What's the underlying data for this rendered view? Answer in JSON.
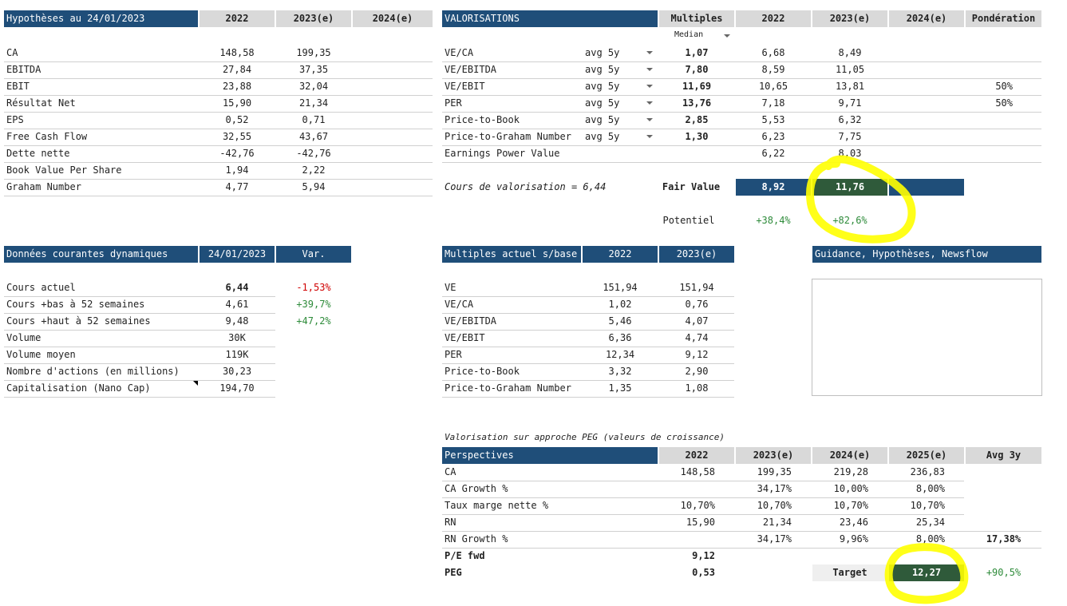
{
  "hyp": {
    "title": "Hypothèses au 24/01/2023",
    "cols": [
      "2022",
      "2023(e)",
      "2024(e)"
    ],
    "rows": [
      {
        "label": "CA",
        "v1": "148,58",
        "v2": "199,35"
      },
      {
        "label": "EBITDA",
        "v1": "27,84",
        "v2": "37,35"
      },
      {
        "label": "EBIT",
        "v1": "23,88",
        "v2": "32,04"
      },
      {
        "label": "Résultat Net",
        "v1": "15,90",
        "v2": "21,34"
      },
      {
        "label": "EPS",
        "v1": "0,52",
        "v2": "0,71"
      },
      {
        "label": "Free Cash Flow",
        "v1": "32,55",
        "v2": "43,67"
      },
      {
        "label": "Dette nette",
        "v1": "-42,76",
        "v2": "-42,76"
      },
      {
        "label": "Book Value Per Share",
        "v1": "1,94",
        "v2": "2,22"
      },
      {
        "label": "Graham Number",
        "v1": "4,77",
        "v2": "5,94"
      }
    ]
  },
  "val": {
    "title": "VALORISATIONS",
    "cols": [
      "Multiples",
      "2022",
      "2023(e)",
      "2024(e)",
      "Pondération"
    ],
    "median_label": "Median",
    "rows": [
      {
        "label": "VE/CA",
        "avg": "avg 5y",
        "mult": "1,07",
        "v1": "6,68",
        "v2": "8,49",
        "pond": ""
      },
      {
        "label": "VE/EBITDA",
        "avg": "avg 5y",
        "mult": "7,80",
        "v1": "8,59",
        "v2": "11,05",
        "pond": ""
      },
      {
        "label": "VE/EBIT",
        "avg": "avg 5y",
        "mult": "11,69",
        "v1": "10,65",
        "v2": "13,81",
        "pond": "50%"
      },
      {
        "label": "PER",
        "avg": "avg 5y",
        "mult": "13,76",
        "v1": "7,18",
        "v2": "9,71",
        "pond": "50%"
      },
      {
        "label": "Price-to-Book",
        "avg": "avg 5y",
        "mult": "2,85",
        "v1": "5,53",
        "v2": "6,32",
        "pond": ""
      },
      {
        "label": "Price-to-Graham Number",
        "avg": "avg 5y",
        "mult": "1,30",
        "v1": "6,23",
        "v2": "7,75",
        "pond": ""
      },
      {
        "label": "Earnings Power Value",
        "avg": "",
        "mult": "",
        "v1": "6,22",
        "v2": "8,03",
        "pond": ""
      }
    ],
    "cours_text": "Cours de valorisation = 6,44",
    "fair_label": "Fair Value",
    "fair_2022": "8,92",
    "fair_2023": "11,76",
    "pot_label": "Potentiel",
    "pot_2022": "+38,4%",
    "pot_2023": "+82,6%"
  },
  "dyn": {
    "title": "Données courantes dynamiques",
    "date": "24/01/2023",
    "var": "Var.",
    "rows": [
      {
        "label": "Cours actuel",
        "val": "6,44",
        "var": "-1,53%"
      },
      {
        "label": "Cours +bas à 52 semaines",
        "val": "4,61",
        "var": "+39,7%"
      },
      {
        "label": "Cours +haut à 52 semaines",
        "val": "9,48",
        "var": "+47,2%"
      },
      {
        "label": "Volume",
        "val": "30K",
        "var": ""
      },
      {
        "label": "Volume moyen",
        "val": "119K",
        "var": ""
      },
      {
        "label": "Nombre d'actions (en millions)",
        "val": "30,23",
        "var": ""
      },
      {
        "label": "Capitalisation (Nano Cap)",
        "val": "194,70",
        "var": ""
      }
    ]
  },
  "mult": {
    "title": "Multiples actuel s/base",
    "cols": [
      "2022",
      "2023(e)"
    ],
    "rows": [
      {
        "label": "VE",
        "v1": "151,94",
        "v2": "151,94"
      },
      {
        "label": "VE/CA",
        "v1": "1,02",
        "v2": "0,76"
      },
      {
        "label": "VE/EBITDA",
        "v1": "5,46",
        "v2": "4,07"
      },
      {
        "label": "VE/EBIT",
        "v1": "6,36",
        "v2": "4,74"
      },
      {
        "label": "PER",
        "v1": "12,34",
        "v2": "9,12"
      },
      {
        "label": "Price-to-Book",
        "v1": "3,32",
        "v2": "2,90"
      },
      {
        "label": "Price-to-Graham Number",
        "v1": "1,35",
        "v2": "1,08"
      }
    ]
  },
  "guid": {
    "title": "Guidance, Hypothèses, Newsflow"
  },
  "peg": {
    "caption": "Valorisation sur approche PEG (valeurs de croissance)",
    "title": "Perspectives",
    "cols": [
      "2022",
      "2023(e)",
      "2024(e)",
      "2025(e)",
      "Avg 3y"
    ],
    "rows": [
      {
        "label": "CA",
        "v": [
          "148,58",
          "199,35",
          "219,28",
          "236,83",
          ""
        ]
      },
      {
        "label": "CA Growth %",
        "v": [
          "",
          "34,17%",
          "10,00%",
          "8,00%",
          ""
        ]
      },
      {
        "label": "Taux marge nette %",
        "v": [
          "10,70%",
          "10,70%",
          "10,70%",
          "10,70%",
          ""
        ]
      },
      {
        "label": "RN",
        "v": [
          "15,90",
          "21,34",
          "23,46",
          "25,34",
          ""
        ]
      },
      {
        "label": "RN Growth %",
        "v": [
          "",
          "34,17%",
          "9,96%",
          "8,00%",
          "17,38%"
        ]
      }
    ],
    "pe_label": "P/E fwd",
    "pe_val": "9,12",
    "peg_label": "PEG",
    "peg_val": "0,53",
    "target_label": "Target",
    "target_val": "12,27",
    "target_pot": "+90,5%"
  },
  "colors": {
    "header": "#1f4e79",
    "subheader": "#d9d9d9",
    "positive": "#2e8b3a",
    "negative": "#d00000",
    "highlight": "#ffff00"
  }
}
